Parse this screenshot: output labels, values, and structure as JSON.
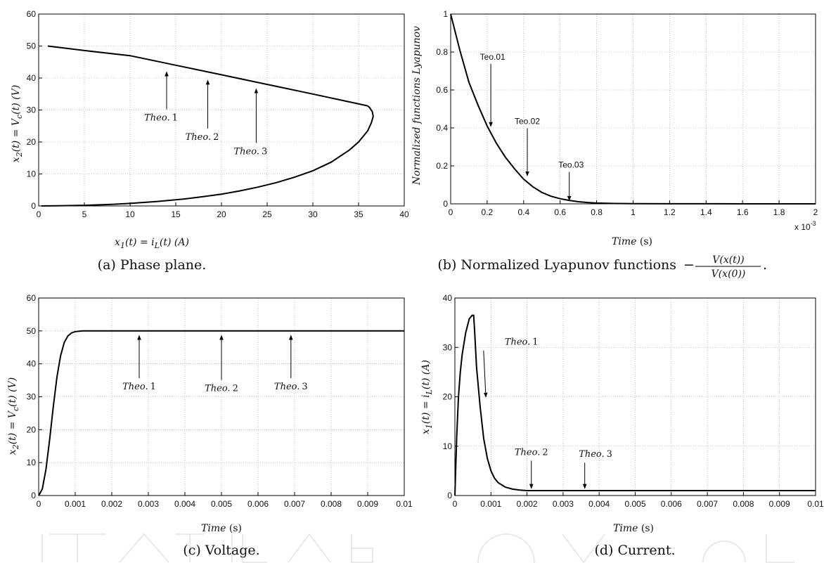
{
  "chart_data": [
    {
      "id": "a",
      "type": "line",
      "caption": "(a) Phase plane.",
      "xlabel": "x_1(t) = i_L(t)   (A)",
      "ylabel": "x_2(t) = V_c(t)   (V)",
      "xlim": [
        0,
        40
      ],
      "ylim": [
        0,
        60
      ],
      "xticks": [
        0,
        5,
        10,
        15,
        20,
        25,
        30,
        35,
        40
      ],
      "yticks": [
        0,
        10,
        20,
        30,
        40,
        50,
        60
      ],
      "grid": true,
      "series": [
        {
          "x": [
            0.3,
            2,
            5,
            8,
            10,
            13,
            16,
            18,
            20,
            22,
            24,
            26,
            28,
            30,
            32,
            34,
            35,
            36,
            36.4,
            36.6,
            36.5,
            36.2,
            36
          ],
          "y": [
            0,
            0.05,
            0.2,
            0.5,
            0.8,
            1.4,
            2.2,
            2.9,
            3.7,
            4.7,
            5.9,
            7.3,
            9.0,
            11.0,
            13.7,
            17.5,
            20.0,
            23.5,
            26.0,
            28.0,
            29.5,
            30.8,
            31.3
          ]
        },
        {
          "x": [
            36,
            30,
            25,
            20,
            15,
            10,
            5,
            1
          ],
          "y": [
            31.3,
            35.0,
            38.0,
            41.0,
            44.0,
            47.0,
            48.6,
            50.0
          ]
        }
      ],
      "annotations": [
        {
          "text": "Theo. 1",
          "x": 14,
          "y": 42.8,
          "label_y": 28
        },
        {
          "text": "Theo. 2",
          "x": 18.5,
          "y": 40.2,
          "label_y": 22
        },
        {
          "text": "Theo. 3",
          "x": 23.8,
          "y": 37.5,
          "label_y": 17.5
        }
      ]
    },
    {
      "id": "b",
      "type": "line",
      "caption": "(b) Normalized Lyapunov functions",
      "caption_formula": {
        "sign": "−",
        "numerator": "V(x(t))",
        "denominator": "V(x(0))",
        "end": "."
      },
      "xlabel": "Time (s)",
      "ylabel": "Normalized functions Lyapunov",
      "xlim": [
        0,
        2
      ],
      "ylim": [
        0,
        1
      ],
      "xticks": [
        0,
        0.2,
        0.4,
        0.6,
        0.8,
        1,
        1.2,
        1.4,
        1.6,
        1.8,
        2
      ],
      "xticklabels": [
        "0",
        "0.2",
        "0.4",
        "0.6",
        "0.8",
        "1",
        "1.2",
        "1.4",
        "1.6",
        "1.8",
        "2"
      ],
      "yticks": [
        0,
        0.2,
        0.4,
        0.6,
        0.8,
        1
      ],
      "exponent_label": "x 10",
      "exponent_power": "-3",
      "grid": true,
      "series": [
        {
          "x": [
            0,
            0.05,
            0.1,
            0.15,
            0.2,
            0.25,
            0.3,
            0.35,
            0.4,
            0.45,
            0.5,
            0.55,
            0.6,
            0.65,
            0.7,
            0.75,
            0.8,
            0.9,
            1.0,
            1.2,
            1.4,
            1.6,
            1.8,
            2.0
          ],
          "y": [
            1,
            0.81,
            0.64,
            0.52,
            0.41,
            0.32,
            0.245,
            0.185,
            0.13,
            0.09,
            0.06,
            0.04,
            0.027,
            0.018,
            0.011,
            0.007,
            0.004,
            0.002,
            0.001,
            0.0005,
            0.0002,
            0.0001,
            0.0,
            0.0
          ]
        }
      ],
      "annotations": [
        {
          "text": "Teo.01",
          "x": 0.22,
          "y": 0.4,
          "label_x": 0.23,
          "label_y": 0.76
        },
        {
          "text": "Teo.02",
          "x": 0.42,
          "y": 0.14,
          "label_x": 0.42,
          "label_y": 0.42
        },
        {
          "text": "Teo.03",
          "x": 0.65,
          "y": 0.01,
          "label_x": 0.66,
          "label_y": 0.19
        }
      ]
    },
    {
      "id": "c",
      "type": "line",
      "caption": "(c) Voltage.",
      "xlabel": "Time (s)",
      "ylabel": "x_2(t) = V_c(t)   (V)",
      "xlim": [
        0,
        0.01
      ],
      "ylim": [
        0,
        60
      ],
      "xticks": [
        0,
        0.001,
        0.002,
        0.003,
        0.004,
        0.005,
        0.006,
        0.007,
        0.008,
        0.009,
        0.01
      ],
      "xticklabels": [
        "0",
        "0.001",
        "0.002",
        "0.003",
        "0.004",
        "0.005",
        "0.006",
        "0.007",
        "0.008",
        "0.009",
        "0.01"
      ],
      "yticks": [
        0,
        10,
        20,
        30,
        40,
        50,
        60
      ],
      "grid": true,
      "series": [
        {
          "x": [
            0,
            0.0001,
            0.0002,
            0.0003,
            0.0004,
            0.0005,
            0.0006,
            0.0007,
            0.0008,
            0.0009,
            0.001,
            0.0012,
            0.0014,
            0.0016,
            0.0018,
            0.002,
            0.003,
            0.005,
            0.007,
            0.01
          ],
          "y": [
            0,
            2,
            8,
            17,
            27,
            36,
            42.5,
            46.5,
            48.5,
            49.4,
            49.8,
            50,
            50,
            50,
            50,
            50,
            50,
            50,
            50,
            50
          ]
        }
      ],
      "annotations": [
        {
          "text": "Theo. 1",
          "x": 0.00275,
          "y": 49.5,
          "label_y": 33.5
        },
        {
          "text": "Theo. 2",
          "x": 0.005,
          "y": 49.5,
          "label_y": 33.0
        },
        {
          "text": "Theo. 3",
          "x": 0.0069,
          "y": 49.5,
          "label_y": 33.5
        }
      ]
    },
    {
      "id": "d",
      "type": "line",
      "caption": "(d) Current.",
      "xlabel": "Time (s)",
      "ylabel": "x_1(t) = i_L(t)   (A)",
      "xlim": [
        0,
        0.01
      ],
      "ylim": [
        0,
        40
      ],
      "xticks": [
        0,
        0.001,
        0.002,
        0.003,
        0.004,
        0.005,
        0.006,
        0.007,
        0.008,
        0.009,
        0.01
      ],
      "xticklabels": [
        "0",
        "0.001",
        "0.002",
        "0.003",
        "0.004",
        "0.005",
        "0.006",
        "0.007",
        "0.008",
        "0.009",
        "0.01"
      ],
      "yticks": [
        0,
        10,
        20,
        30,
        40
      ],
      "grid": true,
      "series": [
        {
          "x": [
            0,
            5e-05,
            0.0001,
            0.00015,
            0.0002,
            0.0003,
            0.0004,
            0.00048,
            0.00052,
            0.00055,
            0.0006,
            0.0007,
            0.0008,
            0.0009,
            0.001,
            0.0011,
            0.0012,
            0.0014,
            0.0016,
            0.0018,
            0.002,
            0.0025,
            0.003,
            0.005,
            0.007,
            0.01
          ],
          "y": [
            0,
            12,
            20,
            25,
            28.5,
            33,
            35.8,
            36.5,
            36.5,
            33,
            26,
            18,
            11.5,
            7.5,
            5,
            3.5,
            2.6,
            1.7,
            1.3,
            1.1,
            1.0,
            1.0,
            1.0,
            1.0,
            1.0,
            1.0
          ]
        }
      ],
      "annotations": [
        {
          "text": "Theo. 1",
          "x": 0.0008,
          "y": 19.5,
          "label_x": 0.00138,
          "label_y": 30.5
        },
        {
          "text": "Theo. 2",
          "x": 0.00212,
          "y": 1.0,
          "label_x": 0.00212,
          "label_y": 8.2
        },
        {
          "text": "Theo. 3",
          "x": 0.0036,
          "y": 1.0,
          "label_x": 0.0039,
          "label_y": 7.8
        }
      ]
    }
  ]
}
